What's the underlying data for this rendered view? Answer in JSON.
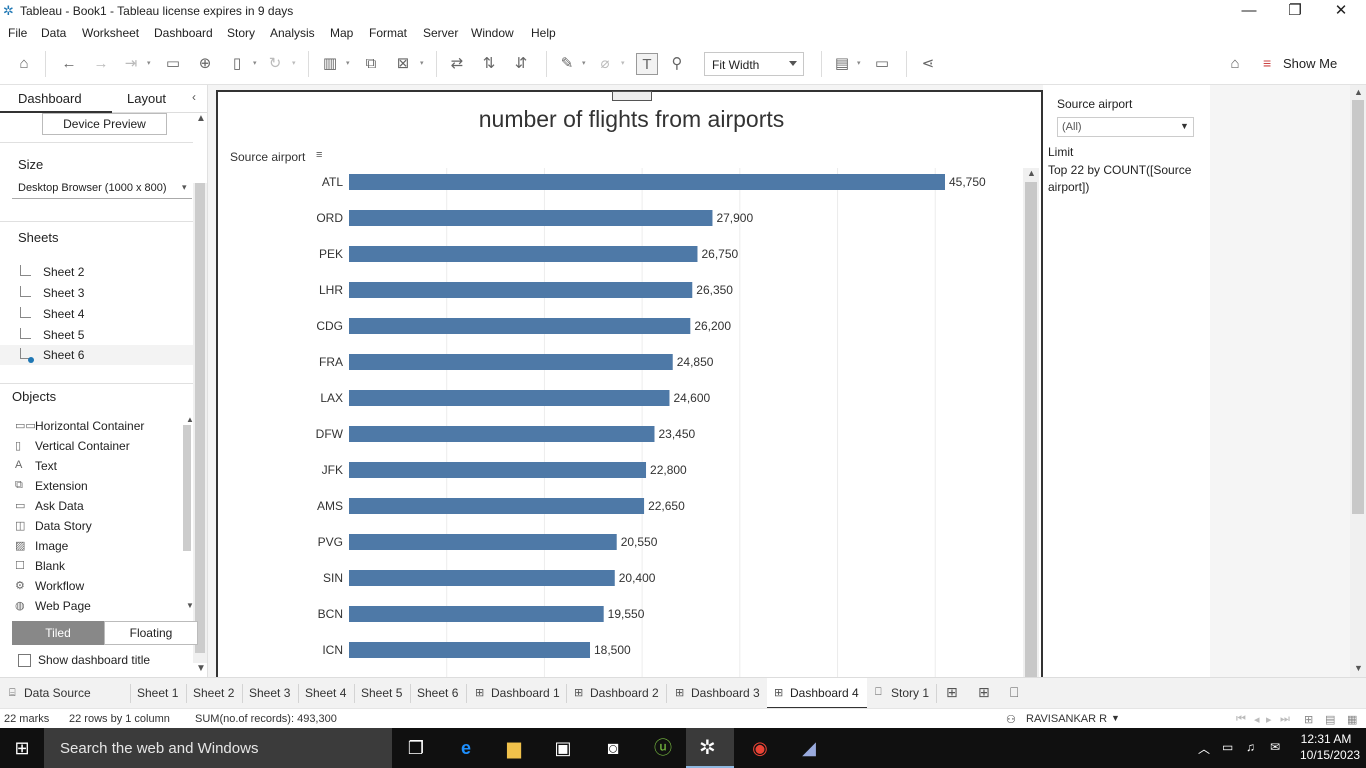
{
  "window": {
    "title": "Tableau - Book1 - Tableau license expires in 9 days"
  },
  "menu": [
    "File",
    "Data",
    "Worksheet",
    "Dashboard",
    "Story",
    "Analysis",
    "Map",
    "Format",
    "Server",
    "Window",
    "Help"
  ],
  "toolbar": {
    "fit_label": "Fit Width",
    "show_me": "Show Me"
  },
  "left_panel": {
    "tab_dashboard": "Dashboard",
    "tab_layout": "Layout",
    "device_preview": "Device Preview",
    "size_heading": "Size",
    "size_value": "Desktop Browser (1000 x 800)",
    "sheets_heading": "Sheets",
    "sheets": [
      "Sheet 2",
      "Sheet 3",
      "Sheet 4",
      "Sheet 5",
      "Sheet 6"
    ],
    "objects_heading": "Objects",
    "objects": [
      "Horizontal Container",
      "Vertical Container",
      "Text",
      "Extension",
      "Ask Data",
      "Data Story",
      "Image",
      "Blank",
      "Workflow",
      "Web Page"
    ],
    "tiled": "Tiled",
    "floating": "Floating",
    "show_title": "Show dashboard title"
  },
  "chart_data": {
    "type": "bar",
    "orientation": "horizontal",
    "title": "number of flights from airports",
    "ylabel": "Source airport",
    "categories": [
      "ATL",
      "ORD",
      "PEK",
      "LHR",
      "CDG",
      "FRA",
      "LAX",
      "DFW",
      "JFK",
      "AMS",
      "PVG",
      "SIN",
      "BCN",
      "ICN"
    ],
    "values": [
      45750,
      27900,
      26750,
      26350,
      26200,
      24850,
      24600,
      23450,
      22800,
      22650,
      20550,
      20400,
      19550,
      18500
    ],
    "value_labels": [
      "45,750",
      "27,900",
      "26,750",
      "26,350",
      "26,200",
      "24,850",
      "24,600",
      "23,450",
      "22,800",
      "22,650",
      "20,550",
      "20,400",
      "19,550",
      "18,500"
    ],
    "xlim": [
      0,
      50000
    ],
    "color": "#4e79a7",
    "grid": true
  },
  "right_pane": {
    "filter_title": "Source airport",
    "filter_value": "(All)",
    "limit_title": "Limit",
    "limit_text": "Top 22 by COUNT([Source airport])"
  },
  "sheet_tabs": [
    "Data Source",
    "Sheet 1",
    "Sheet 2",
    "Sheet 3",
    "Sheet 4",
    "Sheet 5",
    "Sheet 6",
    "Dashboard 1",
    "Dashboard 2",
    "Dashboard 3",
    "Dashboard 4",
    "Story 1"
  ],
  "active_tab": "Dashboard 4",
  "status": {
    "marks": "22 marks",
    "rows": "22 rows by 1 column",
    "sum": "SUM(no.of records): 493,300",
    "user": "RAVISANKAR R"
  },
  "taskbar": {
    "search_placeholder": "Search the web and Windows",
    "time": "12:31 AM",
    "date": "10/15/2023"
  }
}
